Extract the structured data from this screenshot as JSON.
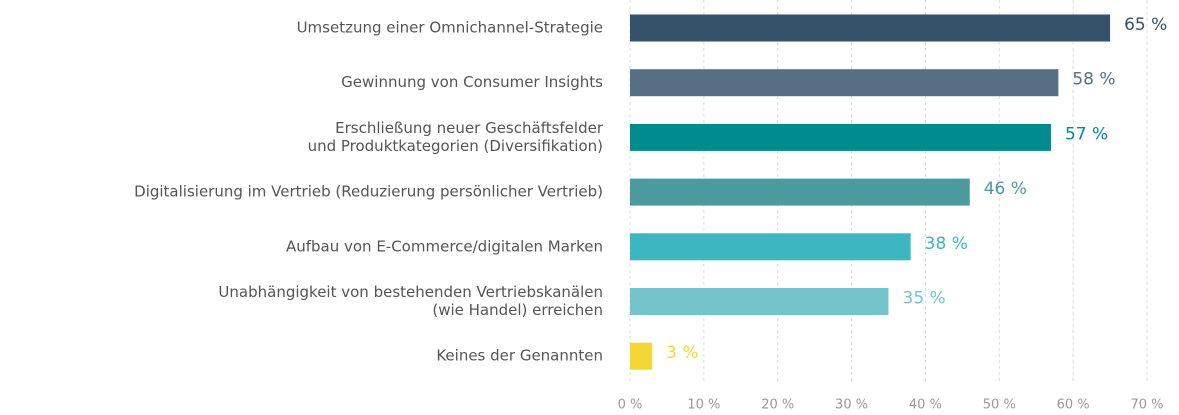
{
  "chart_data": {
    "type": "bar",
    "orientation": "horizontal",
    "categories": [
      [
        "Umsetzung einer Omnichannel-Strategie"
      ],
      [
        "Gewinnung von Consumer Insights"
      ],
      [
        "Erschließung neuer Geschäftsfelder",
        "und Produktkategorien (Diversifikation)"
      ],
      [
        "Digitalisierung im Vertrieb (Reduzierung persönlicher Vertrieb)"
      ],
      [
        "Aufbau von E-Commerce/digitalen Marken"
      ],
      [
        "Unabhängigkeit von bestehenden Vertriebskanälen",
        "(wie Handel) erreichen"
      ],
      [
        "Keines der Genannten"
      ]
    ],
    "values": [
      65,
      58,
      57,
      46,
      38,
      35,
      3
    ],
    "value_labels": [
      "65 %",
      "58 %",
      "57 %",
      "46 %",
      "38 %",
      "35 %",
      "3 %"
    ],
    "colors": [
      "#34536a",
      "#566f84",
      "#008b8f",
      "#4a9a9e",
      "#3cb6c0",
      "#74c4cc",
      "#f3d835"
    ],
    "xlim": [
      0,
      70
    ],
    "xticks": [
      {
        "value": 0,
        "label": "0 %"
      },
      {
        "value": 10,
        "label": "10 %"
      },
      {
        "value": 20,
        "label": "20 %"
      },
      {
        "value": 30,
        "label": "30 %"
      },
      {
        "value": 40,
        "label": "40 %"
      },
      {
        "value": 50,
        "label": "50 %"
      },
      {
        "value": 60,
        "label": "60 %"
      },
      {
        "value": 70,
        "label": "70 %"
      }
    ],
    "grid": true
  }
}
